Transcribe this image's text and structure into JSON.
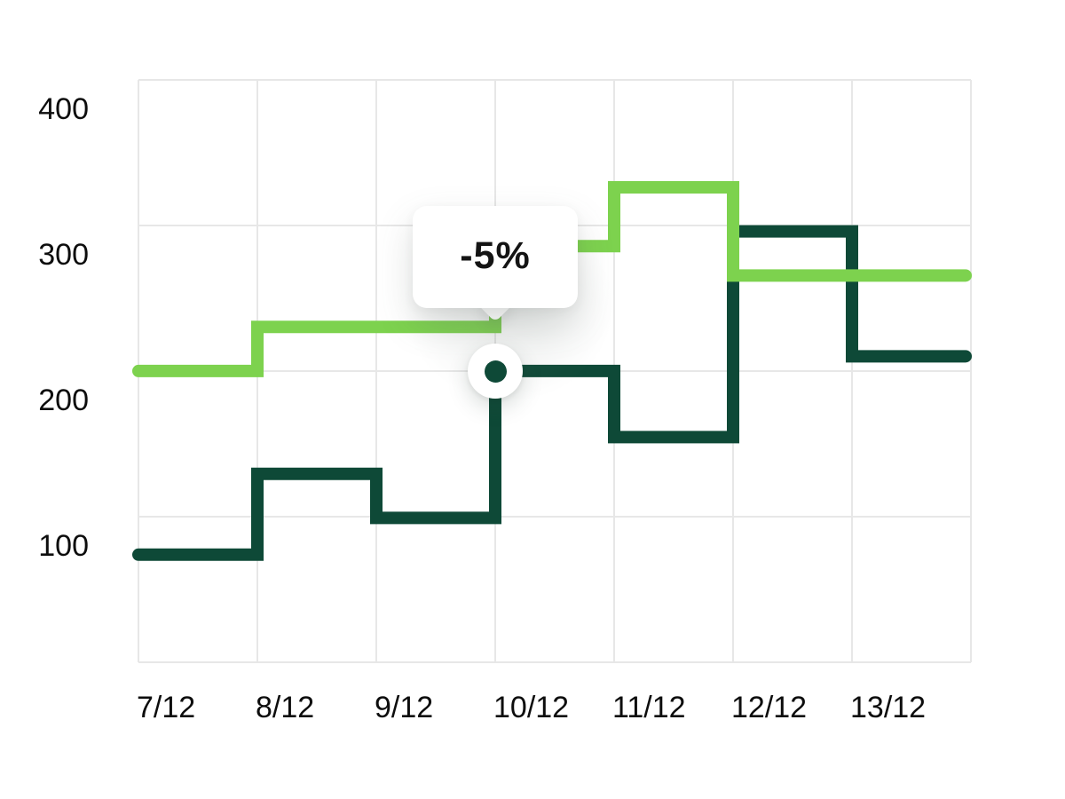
{
  "chart_data": {
    "type": "line",
    "subtype": "step-after",
    "title": "",
    "categories": [
      "7/12",
      "8/12",
      "9/12",
      "10/12",
      "11/12",
      "12/12",
      "13/12"
    ],
    "series": [
      {
        "name": "dark-green",
        "color": "#0E4937",
        "values": [
          95,
          150,
          120,
          220,
          175,
          315,
          230
        ]
      },
      {
        "name": "light-green",
        "color": "#7DD24E",
        "values": [
          220,
          250,
          250,
          305,
          345,
          285,
          285
        ]
      }
    ],
    "y_ticks": [
      "400",
      "300",
      "200",
      "100"
    ],
    "ylim": [
      22,
      420
    ],
    "grid": true,
    "legend": false,
    "gridline_color": "#e7e7e7",
    "tooltip": {
      "label": "-5%",
      "category": "10/12",
      "series": "dark-green",
      "value": 220
    }
  }
}
